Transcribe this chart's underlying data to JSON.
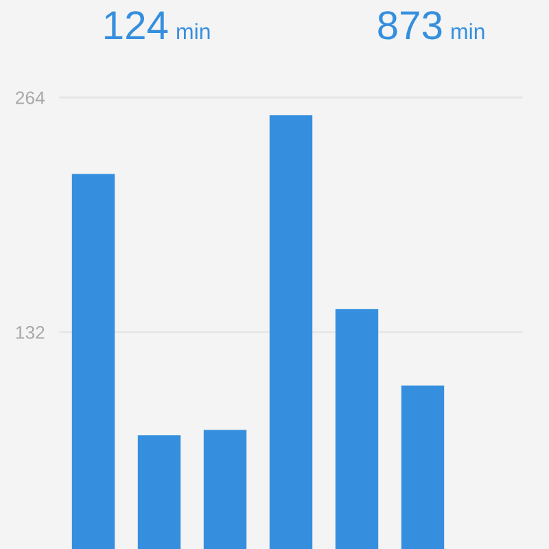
{
  "chart_data": {
    "type": "bar",
    "categories": [
      null,
      null,
      null,
      null,
      null,
      null,
      null
    ],
    "values": [
      221,
      74,
      77,
      254,
      145,
      102,
      null
    ],
    "color": "#358fde",
    "ylim": [
      10,
      264
    ],
    "yticks": [
      132,
      264
    ],
    "grid": "y",
    "tick_labels": "y",
    "annotations": [
      "124 min",
      "873 min"
    ]
  }
}
